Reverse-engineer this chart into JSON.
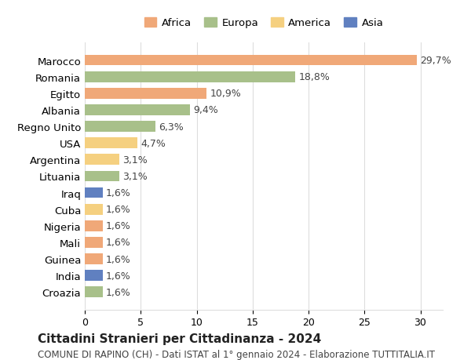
{
  "countries": [
    "Marocco",
    "Romania",
    "Egitto",
    "Albania",
    "Regno Unito",
    "USA",
    "Argentina",
    "Lituania",
    "Iraq",
    "Cuba",
    "Nigeria",
    "Mali",
    "Guinea",
    "India",
    "Croazia"
  ],
  "values": [
    29.7,
    18.8,
    10.9,
    9.4,
    6.3,
    4.7,
    3.1,
    3.1,
    1.6,
    1.6,
    1.6,
    1.6,
    1.6,
    1.6,
    1.6
  ],
  "labels": [
    "29,7%",
    "18,8%",
    "10,9%",
    "9,4%",
    "6,3%",
    "4,7%",
    "3,1%",
    "3,1%",
    "1,6%",
    "1,6%",
    "1,6%",
    "1,6%",
    "1,6%",
    "1,6%",
    "1,6%"
  ],
  "continents": [
    "Africa",
    "Europa",
    "Africa",
    "Europa",
    "Europa",
    "America",
    "America",
    "Europa",
    "Asia",
    "America",
    "Africa",
    "Africa",
    "Africa",
    "Asia",
    "Europa"
  ],
  "continent_colors": {
    "Africa": "#F0A878",
    "Europa": "#A8C08A",
    "America": "#F5D080",
    "Asia": "#6080C0"
  },
  "legend_items": [
    "Africa",
    "Europa",
    "America",
    "Asia"
  ],
  "legend_colors": [
    "#F0A878",
    "#A8C08A",
    "#F5D080",
    "#6080C0"
  ],
  "xlim": [
    0,
    32
  ],
  "xticks": [
    0,
    5,
    10,
    15,
    20,
    25,
    30
  ],
  "title": "Cittadini Stranieri per Cittadinanza - 2024",
  "subtitle": "COMUNE DI RAPINO (CH) - Dati ISTAT al 1° gennaio 2024 - Elaborazione TUTTITALIA.IT",
  "bg_color": "#ffffff",
  "grid_color": "#dddddd",
  "bar_height": 0.65,
  "label_fontsize": 9,
  "title_fontsize": 11,
  "subtitle_fontsize": 8.5
}
